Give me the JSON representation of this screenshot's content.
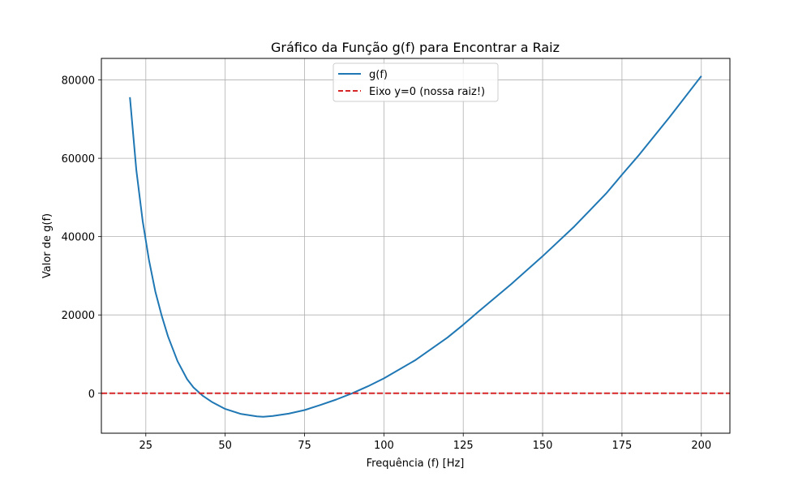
{
  "chart_data": {
    "type": "line",
    "title": "Gráfico da Função g(f) para Encontrar a Raiz",
    "xlabel": "Frequência (f) [Hz]",
    "ylabel": "Valor de g(f)",
    "xlim": [
      11,
      209
    ],
    "ylim": [
      -10200,
      85500
    ],
    "xticks": [
      25,
      50,
      75,
      100,
      125,
      150,
      175,
      200
    ],
    "yticks": [
      0,
      20000,
      40000,
      60000,
      80000
    ],
    "grid": true,
    "legend_position": "upper center",
    "series": [
      {
        "name": "g(f)",
        "color": "#1f77b4",
        "style": "solid",
        "x": [
          20,
          22,
          24,
          26,
          28,
          30,
          32,
          35,
          38,
          40,
          43,
          46,
          50,
          55,
          60,
          62,
          65,
          70,
          75,
          80,
          85,
          90,
          95,
          100,
          110,
          120,
          125,
          130,
          140,
          150,
          160,
          170,
          175,
          180,
          190,
          200
        ],
        "y": [
          75600,
          57000,
          44000,
          34000,
          26000,
          19800,
          14500,
          8200,
          3600,
          1500,
          -700,
          -2300,
          -4000,
          -5300,
          -5900,
          -6000,
          -5800,
          -5200,
          -4300,
          -3000,
          -1600,
          0,
          1800,
          3800,
          8500,
          14200,
          17500,
          21000,
          27800,
          35000,
          42600,
          51000,
          55800,
          60500,
          70500,
          81000
        ]
      },
      {
        "name": "Eixo y=0 (nossa raiz!)",
        "color": "#d62728",
        "style": "dashed",
        "x": [
          11,
          209
        ],
        "y": [
          0,
          0
        ]
      }
    ]
  }
}
